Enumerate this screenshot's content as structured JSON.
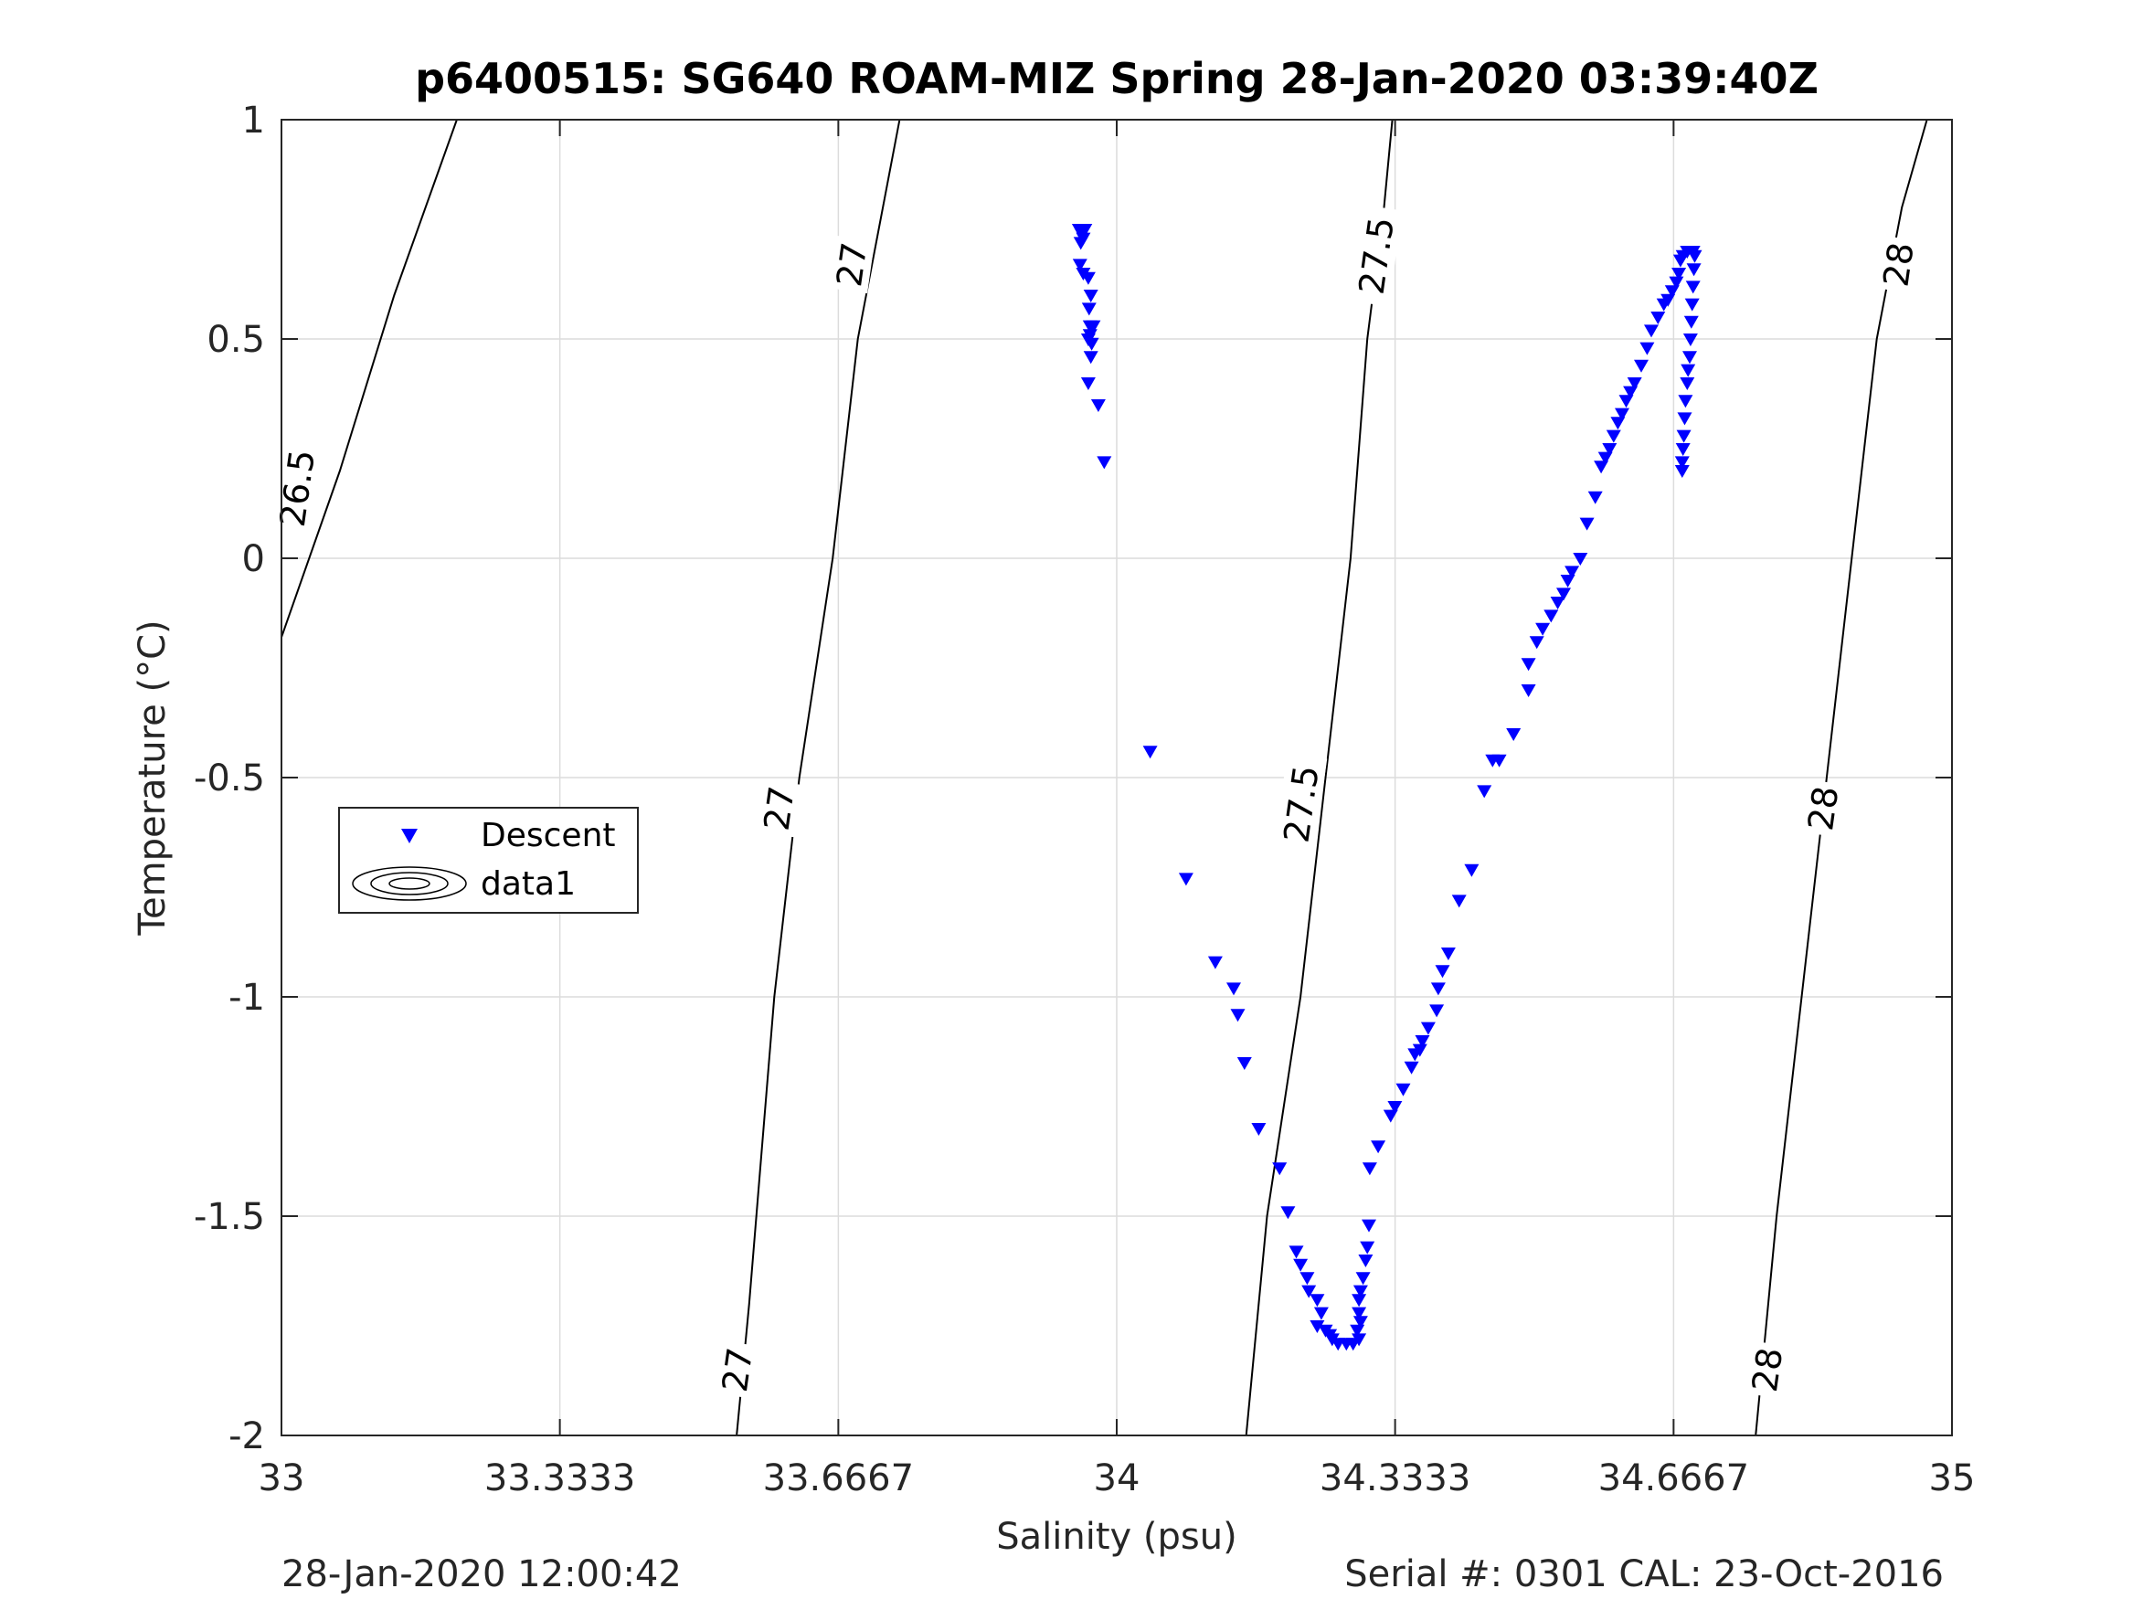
{
  "chart_data": {
    "type": "scatter",
    "title": "p6400515: SG640 ROAM-MIZ Spring 28-Jan-2020 03:39:40Z",
    "xlabel": "Salinity (psu)",
    "ylabel": "Temperature (°C)",
    "xlim": [
      33,
      35
    ],
    "ylim": [
      -2,
      1
    ],
    "xticks": [
      33,
      33.3333,
      33.6667,
      34,
      34.3333,
      34.6667,
      35
    ],
    "xtick_labels": [
      "33",
      "33.3333",
      "33.6667",
      "34",
      "34.3333",
      "34.6667",
      "35"
    ],
    "yticks": [
      -2,
      -1.5,
      -1,
      -0.5,
      0,
      0.5,
      1
    ],
    "ytick_labels": [
      "-2",
      "-1.5",
      "-1",
      "-0.5",
      "0",
      "0.5",
      "1"
    ],
    "grid": true,
    "legend": {
      "placement": "middle-left",
      "entries": [
        "Descent",
        "data1"
      ]
    },
    "colors": {
      "descent": "#0000ff",
      "contour": "#000000",
      "grid": "#dcdcdc",
      "axes": "#262626"
    },
    "contours": [
      {
        "level": "26.5",
        "points": [
          [
            33.0,
            -0.18
          ],
          [
            33.07,
            0.2
          ],
          [
            33.135,
            0.6
          ],
          [
            33.21,
            1.0
          ]
        ]
      },
      {
        "level": "27",
        "points": [
          [
            33.545,
            -2.0
          ],
          [
            33.56,
            -1.7
          ],
          [
            33.59,
            -1.0
          ],
          [
            33.62,
            -0.5
          ],
          [
            33.66,
            0.0
          ],
          [
            33.69,
            0.5
          ],
          [
            33.74,
            1.0
          ]
        ]
      },
      {
        "level": "27.5",
        "points": [
          [
            34.155,
            -2.0
          ],
          [
            34.18,
            -1.5
          ],
          [
            34.22,
            -1.0
          ],
          [
            34.25,
            -0.5
          ],
          [
            34.28,
            0.0
          ],
          [
            34.3,
            0.5
          ],
          [
            34.32,
            0.8
          ],
          [
            34.33,
            1.0
          ]
        ]
      },
      {
        "level": "28",
        "points": [
          [
            34.765,
            -2.0
          ],
          [
            34.79,
            -1.5
          ],
          [
            34.82,
            -1.0
          ],
          [
            34.85,
            -0.5
          ],
          [
            34.88,
            0.0
          ],
          [
            34.91,
            0.5
          ],
          [
            34.94,
            0.8
          ],
          [
            34.97,
            1.0
          ]
        ]
      }
    ],
    "contour_labels": [
      {
        "text": "26.5",
        "x": 33.018,
        "y": 0.16
      },
      {
        "text": "27",
        "x": 33.682,
        "y": 0.67
      },
      {
        "text": "27",
        "x": 33.595,
        "y": -0.57
      },
      {
        "text": "27",
        "x": 33.545,
        "y": -1.85
      },
      {
        "text": "27.5",
        "x": 34.31,
        "y": 0.69
      },
      {
        "text": "27.5",
        "x": 34.22,
        "y": -0.56
      },
      {
        "text": "28",
        "x": 34.935,
        "y": 0.67
      },
      {
        "text": "28",
        "x": 34.845,
        "y": -0.57
      },
      {
        "text": "28",
        "x": 34.778,
        "y": -1.85
      }
    ],
    "series": [
      {
        "name": "Descent",
        "marker": "triangle-down",
        "points": [
          [
            33.955,
            0.75
          ],
          [
            33.962,
            0.75
          ],
          [
            33.958,
            0.74
          ],
          [
            33.96,
            0.73
          ],
          [
            33.957,
            0.72
          ],
          [
            33.956,
            0.67
          ],
          [
            33.96,
            0.65
          ],
          [
            33.966,
            0.64
          ],
          [
            33.969,
            0.6
          ],
          [
            33.967,
            0.57
          ],
          [
            33.968,
            0.53
          ],
          [
            33.972,
            0.53
          ],
          [
            33.968,
            0.51
          ],
          [
            33.966,
            0.5
          ],
          [
            33.97,
            0.49
          ],
          [
            33.969,
            0.46
          ],
          [
            33.966,
            0.4
          ],
          [
            33.978,
            0.35
          ],
          [
            33.985,
            0.22
          ],
          [
            34.04,
            -0.44
          ],
          [
            34.083,
            -0.73
          ],
          [
            34.118,
            -0.92
          ],
          [
            34.14,
            -0.98
          ],
          [
            34.145,
            -1.04
          ],
          [
            34.153,
            -1.15
          ],
          [
            34.17,
            -1.3
          ],
          [
            34.195,
            -1.39
          ],
          [
            34.205,
            -1.49
          ],
          [
            34.215,
            -1.58
          ],
          [
            34.22,
            -1.61
          ],
          [
            34.228,
            -1.64
          ],
          [
            34.23,
            -1.67
          ],
          [
            34.24,
            -1.69
          ],
          [
            34.245,
            -1.72
          ],
          [
            34.24,
            -1.75
          ],
          [
            34.25,
            -1.76
          ],
          [
            34.255,
            -1.77
          ],
          [
            34.258,
            -1.78
          ],
          [
            34.265,
            -1.79
          ],
          [
            34.275,
            -1.79
          ],
          [
            34.283,
            -1.79
          ],
          [
            34.29,
            -1.78
          ],
          [
            34.288,
            -1.76
          ],
          [
            34.292,
            -1.74
          ],
          [
            34.29,
            -1.72
          ],
          [
            34.29,
            -1.69
          ],
          [
            34.292,
            -1.67
          ],
          [
            34.295,
            -1.64
          ],
          [
            34.298,
            -1.6
          ],
          [
            34.3,
            -1.57
          ],
          [
            34.302,
            -1.52
          ],
          [
            34.303,
            -1.39
          ],
          [
            34.313,
            -1.34
          ],
          [
            34.328,
            -1.27
          ],
          [
            34.333,
            -1.25
          ],
          [
            34.343,
            -1.21
          ],
          [
            34.353,
            -1.16
          ],
          [
            34.357,
            -1.13
          ],
          [
            34.363,
            -1.12
          ],
          [
            34.366,
            -1.1
          ],
          [
            34.373,
            -1.07
          ],
          [
            34.383,
            -1.03
          ],
          [
            34.385,
            -0.98
          ],
          [
            34.39,
            -0.94
          ],
          [
            34.397,
            -0.9
          ],
          [
            34.41,
            -0.78
          ],
          [
            34.425,
            -0.71
          ],
          [
            34.44,
            -0.53
          ],
          [
            34.45,
            -0.46
          ],
          [
            34.458,
            -0.46
          ],
          [
            34.475,
            -0.4
          ],
          [
            34.493,
            -0.3
          ],
          [
            34.493,
            -0.24
          ],
          [
            34.503,
            -0.19
          ],
          [
            34.51,
            -0.16
          ],
          [
            34.52,
            -0.13
          ],
          [
            34.528,
            -0.1
          ],
          [
            34.535,
            -0.08
          ],
          [
            34.54,
            -0.05
          ],
          [
            34.545,
            -0.03
          ],
          [
            34.555,
            0.0
          ],
          [
            34.563,
            0.08
          ],
          [
            34.573,
            0.14
          ],
          [
            34.58,
            0.21
          ],
          [
            34.585,
            0.23
          ],
          [
            34.59,
            0.25
          ],
          [
            34.595,
            0.28
          ],
          [
            34.6,
            0.31
          ],
          [
            34.605,
            0.33
          ],
          [
            34.61,
            0.36
          ],
          [
            34.615,
            0.38
          ],
          [
            34.62,
            0.4
          ],
          [
            34.628,
            0.44
          ],
          [
            34.635,
            0.48
          ],
          [
            34.64,
            0.52
          ],
          [
            34.648,
            0.55
          ],
          [
            34.655,
            0.58
          ],
          [
            34.66,
            0.59
          ],
          [
            34.665,
            0.61
          ],
          [
            34.67,
            0.63
          ],
          [
            34.673,
            0.65
          ],
          [
            34.675,
            0.68
          ],
          [
            34.678,
            0.69
          ],
          [
            34.683,
            0.7
          ],
          [
            34.69,
            0.7
          ],
          [
            34.692,
            0.69
          ],
          [
            34.691,
            0.66
          ],
          [
            34.69,
            0.62
          ],
          [
            34.689,
            0.58
          ],
          [
            34.688,
            0.54
          ],
          [
            34.687,
            0.5
          ],
          [
            34.686,
            0.46
          ],
          [
            34.684,
            0.43
          ],
          [
            34.683,
            0.4
          ],
          [
            34.681,
            0.36
          ],
          [
            34.68,
            0.32
          ],
          [
            34.679,
            0.28
          ],
          [
            34.678,
            0.25
          ],
          [
            34.677,
            0.22
          ],
          [
            34.677,
            0.2
          ]
        ]
      }
    ]
  },
  "footer": {
    "left": "28-Jan-2020 12:00:42",
    "right": "Serial #: 0301  CAL: 23-Oct-2016"
  }
}
